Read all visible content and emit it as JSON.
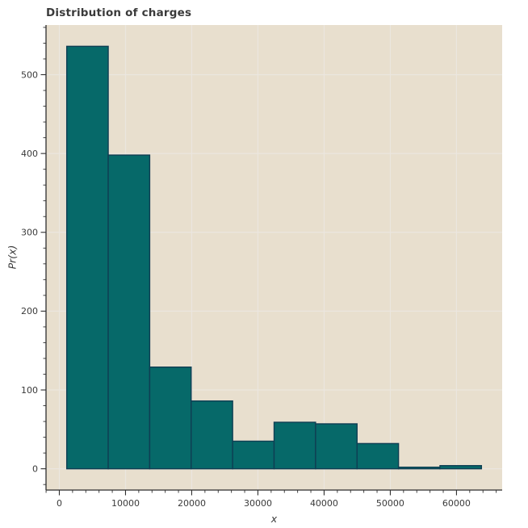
{
  "chart_data": {
    "type": "bar",
    "subtype": "histogram",
    "title": "Distribution of charges",
    "xlabel": "x",
    "ylabel": "Pr(x)",
    "bin_edges": [
      1122,
      7387,
      13652,
      19916,
      26181,
      32446,
      38711,
      44976,
      51241,
      57506,
      63770
    ],
    "values": [
      536,
      398,
      129,
      86,
      35,
      59,
      57,
      32,
      2,
      4
    ],
    "xlim": [
      -2010,
      66900
    ],
    "ylim": [
      -27,
      563
    ],
    "xticks": [
      0,
      10000,
      20000,
      30000,
      40000,
      50000,
      60000
    ],
    "yticks": [
      0,
      100,
      200,
      300,
      400,
      500
    ],
    "x_minor_step": 2000,
    "y_minor_step": 20,
    "grid": true,
    "legend": null,
    "colors": {
      "figure_background": "#ffffff",
      "axes_background": "#e8dfce",
      "grid_line": "#ebe6df",
      "bar_fill": "#066969",
      "bar_edge": "#0f3e53",
      "spine": "#2e2e2e",
      "tick": "#2e2e2e",
      "text": "#3a3a3a"
    }
  }
}
